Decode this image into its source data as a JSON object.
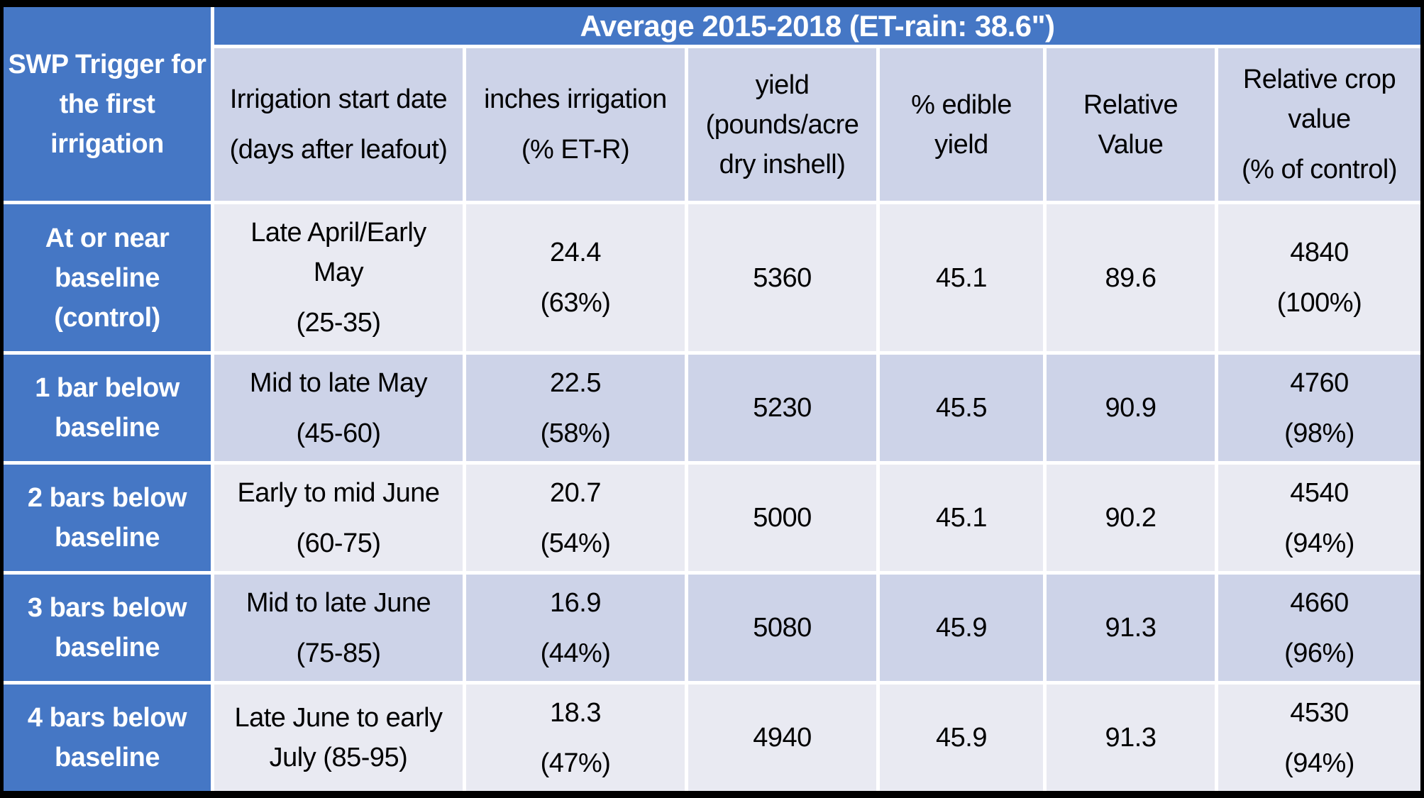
{
  "colors": {
    "accent_blue": "#4577C5",
    "band_dark": "#CDD3E8",
    "band_light": "#E9EAF2",
    "separator_white": "#FFFFFF",
    "background_black": "#000000",
    "header_text": "#FFFFFF",
    "body_text": "#000000"
  },
  "table": {
    "title": "Average 2015-2018 (ET-rain: 38.6\")",
    "corner_header": [
      [
        "SWP Trigger for",
        "the first",
        "irrigation"
      ]
    ],
    "column_headers": [
      [
        [
          "Irrigation start date"
        ],
        [
          "(days after leafout)"
        ]
      ],
      [
        [
          "inches irrigation"
        ],
        [
          "(% ET-R)"
        ]
      ],
      [
        [
          "yield",
          "(pounds/acre",
          "dry inshell)"
        ]
      ],
      [
        [
          "% edible",
          "yield"
        ]
      ],
      [
        [
          "Relative",
          "Value"
        ]
      ],
      [
        [
          "Relative crop",
          "value"
        ],
        [
          "(% of control)"
        ]
      ]
    ],
    "rows": [
      {
        "label": [
          [
            "At or near",
            "baseline",
            "(control)"
          ]
        ],
        "cells": [
          [
            [
              "Late April/Early",
              "May"
            ],
            [
              "(25-35)"
            ]
          ],
          [
            [
              "24.4"
            ],
            [
              "(63%)"
            ]
          ],
          [
            [
              "5360"
            ]
          ],
          [
            [
              "45.1"
            ]
          ],
          [
            [
              "89.6"
            ]
          ],
          [
            [
              "4840"
            ],
            [
              "(100%)"
            ]
          ]
        ]
      },
      {
        "label": [
          [
            "1 bar below",
            "baseline"
          ]
        ],
        "cells": [
          [
            [
              "Mid to late May"
            ],
            [
              "(45-60)"
            ]
          ],
          [
            [
              "22.5"
            ],
            [
              "(58%)"
            ]
          ],
          [
            [
              "5230"
            ]
          ],
          [
            [
              "45.5"
            ]
          ],
          [
            [
              "90.9"
            ]
          ],
          [
            [
              "4760"
            ],
            [
              "(98%)"
            ]
          ]
        ]
      },
      {
        "label": [
          [
            "2 bars below",
            "baseline"
          ]
        ],
        "cells": [
          [
            [
              "Early to mid June"
            ],
            [
              "(60-75)"
            ]
          ],
          [
            [
              "20.7"
            ],
            [
              "(54%)"
            ]
          ],
          [
            [
              "5000"
            ]
          ],
          [
            [
              "45.1"
            ]
          ],
          [
            [
              "90.2"
            ]
          ],
          [
            [
              "4540"
            ],
            [
              "(94%)"
            ]
          ]
        ]
      },
      {
        "label": [
          [
            "3 bars below",
            "baseline"
          ]
        ],
        "cells": [
          [
            [
              "Mid to late June"
            ],
            [
              "(75-85)"
            ]
          ],
          [
            [
              "16.9"
            ],
            [
              "(44%)"
            ]
          ],
          [
            [
              "5080"
            ]
          ],
          [
            [
              "45.9"
            ]
          ],
          [
            [
              "91.3"
            ]
          ],
          [
            [
              "4660"
            ],
            [
              "(96%)"
            ]
          ]
        ]
      },
      {
        "label": [
          [
            "4 bars below",
            "baseline"
          ]
        ],
        "cells": [
          [
            [
              "Late June to early",
              "July (85-95)"
            ]
          ],
          [
            [
              "18.3"
            ],
            [
              "(47%)"
            ]
          ],
          [
            [
              "4940"
            ]
          ],
          [
            [
              "45.9"
            ]
          ],
          [
            [
              "91.3"
            ]
          ],
          [
            [
              "4530"
            ],
            [
              "(94%)"
            ]
          ]
        ]
      }
    ]
  },
  "chart_data": {
    "type": "table",
    "title": "Average 2015-2018 (ET-rain: 38.6\")",
    "columns": [
      "SWP Trigger for the first irrigation",
      "Irrigation start date (days after leafout)",
      "inches irrigation (% ET-R)",
      "yield (pounds/acre dry inshell)",
      "% edible yield",
      "Relative Value",
      "Relative crop value (% of control)"
    ],
    "rows": [
      [
        "At or near baseline (control)",
        "Late April/Early May (25-35)",
        "24.4 (63%)",
        5360,
        45.1,
        89.6,
        "4840 (100%)"
      ],
      [
        "1 bar below baseline",
        "Mid to late May (45-60)",
        "22.5 (58%)",
        5230,
        45.5,
        90.9,
        "4760 (98%)"
      ],
      [
        "2 bars below baseline",
        "Early to mid June (60-75)",
        "20.7 (54%)",
        5000,
        45.1,
        90.2,
        "4540 (94%)"
      ],
      [
        "3 bars below baseline",
        "Mid to late June (75-85)",
        "16.9 (44%)",
        5080,
        45.9,
        91.3,
        "4660 (96%)"
      ],
      [
        "4 bars below baseline",
        "Late June to early July (85-95)",
        "18.3 (47%)",
        4940,
        45.9,
        91.3,
        "4530 (94%)"
      ]
    ]
  }
}
